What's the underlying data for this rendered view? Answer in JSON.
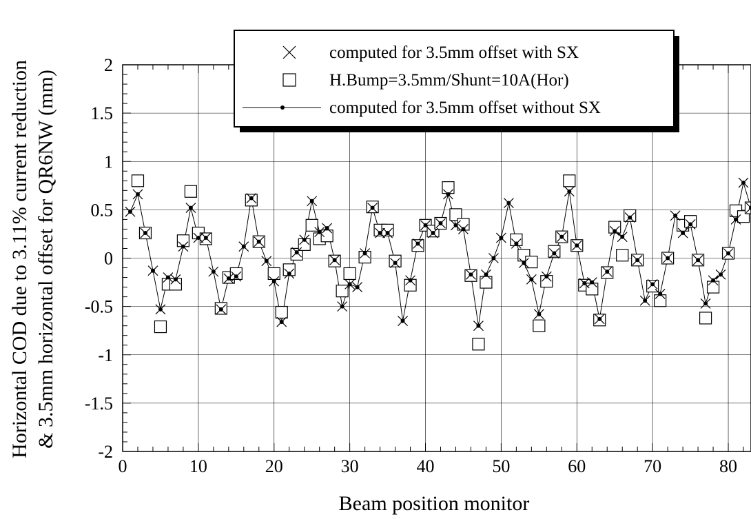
{
  "chart_data": {
    "type": "line",
    "xlabel": "Beam position monitor",
    "ylabel_line1": "Horizontal COD due to 3.11% current reduction",
    "ylabel_line2": "& 3.5mm horizontal offset for QR6NW (mm)",
    "xlim": [
      0,
      83
    ],
    "ylim": [
      -2,
      2
    ],
    "x_ticks": [
      0,
      10,
      20,
      30,
      40,
      50,
      60,
      70,
      80
    ],
    "y_ticks": [
      -2,
      -1.5,
      -1,
      -0.5,
      0,
      0.5,
      1,
      1.5,
      2
    ],
    "y_tick_labels": [
      "-2",
      "-1.5",
      "-1",
      "-0.5",
      "0",
      "0.5",
      "1",
      "1.5",
      "2"
    ],
    "grid": true,
    "legend_position": "top-right",
    "x": [
      1,
      2,
      3,
      4,
      5,
      6,
      7,
      8,
      9,
      10,
      11,
      12,
      13,
      14,
      15,
      16,
      17,
      18,
      19,
      20,
      21,
      22,
      23,
      24,
      25,
      26,
      27,
      28,
      29,
      30,
      31,
      32,
      33,
      34,
      35,
      36,
      37,
      38,
      39,
      40,
      41,
      42,
      43,
      44,
      45,
      46,
      47,
      48,
      49,
      50,
      51,
      52,
      53,
      54,
      55,
      56,
      57,
      58,
      59,
      60,
      61,
      62,
      63,
      64,
      65,
      66,
      67,
      68,
      69,
      70,
      71,
      72,
      73,
      74,
      75,
      76,
      77,
      78,
      79,
      80,
      81,
      82,
      83
    ],
    "series": [
      {
        "name": "computed for 3.5mm offset with SX",
        "marker": "x",
        "line": false,
        "y": [
          0.48,
          0.66,
          0.26,
          -0.13,
          -0.53,
          -0.2,
          -0.22,
          0.12,
          0.52,
          0.21,
          0.21,
          -0.14,
          -0.53,
          -0.21,
          -0.19,
          0.12,
          0.62,
          0.17,
          -0.03,
          -0.24,
          -0.66,
          -0.16,
          0.06,
          0.19,
          0.59,
          0.27,
          0.31,
          -0.02,
          -0.5,
          -0.27,
          -0.3,
          0.05,
          0.52,
          0.26,
          0.26,
          -0.05,
          -0.65,
          -0.23,
          0.15,
          0.34,
          0.26,
          0.36,
          0.66,
          0.34,
          0.3,
          -0.17,
          -0.7,
          -0.17,
          0.0,
          0.21,
          0.57,
          0.15,
          -0.05,
          -0.22,
          -0.58,
          -0.19,
          0.05,
          0.22,
          0.69,
          0.13,
          -0.26,
          -0.25,
          -0.63,
          -0.14,
          0.28,
          0.22,
          0.42,
          -0.02,
          -0.44,
          -0.27,
          -0.37,
          0.0,
          0.44,
          0.26,
          0.35,
          -0.02,
          -0.47,
          -0.23,
          -0.17,
          0.05,
          0.4,
          0.78,
          0.52
        ]
      },
      {
        "name": "H.Bump=3.5mm/Shunt=10A(Hor)",
        "marker": "square",
        "line": false,
        "y": [
          null,
          0.8,
          0.26,
          null,
          -0.71,
          -0.27,
          -0.27,
          0.18,
          0.69,
          0.26,
          0.2,
          null,
          -0.52,
          -0.2,
          -0.16,
          null,
          0.6,
          0.17,
          null,
          -0.16,
          -0.56,
          -0.12,
          0.04,
          0.14,
          0.34,
          0.2,
          0.23,
          -0.03,
          -0.34,
          -0.16,
          null,
          0.01,
          0.53,
          0.29,
          0.29,
          -0.03,
          null,
          -0.28,
          0.13,
          0.34,
          0.28,
          0.36,
          0.73,
          0.45,
          0.35,
          -0.18,
          -0.89,
          -0.25,
          null,
          null,
          null,
          0.19,
          0.03,
          -0.04,
          -0.7,
          -0.24,
          0.07,
          0.22,
          0.8,
          0.13,
          -0.28,
          -0.32,
          -0.64,
          -0.15,
          0.32,
          0.03,
          0.44,
          -0.02,
          null,
          -0.29,
          -0.44,
          0.0,
          null,
          0.34,
          0.38,
          -0.02,
          -0.62,
          -0.3,
          null,
          0.05,
          0.49,
          0.43,
          0.52
        ]
      },
      {
        "name": "computed for 3.5mm offset without SX",
        "marker": "dot",
        "line": true,
        "y": [
          0.48,
          0.66,
          0.26,
          -0.13,
          -0.53,
          -0.2,
          -0.22,
          0.12,
          0.52,
          0.21,
          0.21,
          -0.14,
          -0.53,
          -0.21,
          -0.19,
          0.12,
          0.62,
          0.17,
          -0.03,
          -0.24,
          -0.66,
          -0.16,
          0.06,
          0.19,
          0.59,
          0.27,
          0.31,
          -0.02,
          -0.5,
          -0.27,
          -0.3,
          0.05,
          0.52,
          0.26,
          0.26,
          -0.05,
          -0.65,
          -0.23,
          0.15,
          0.34,
          0.26,
          0.36,
          0.66,
          0.34,
          0.3,
          -0.17,
          -0.7,
          -0.17,
          0.0,
          0.21,
          0.57,
          0.15,
          -0.05,
          -0.22,
          -0.58,
          -0.19,
          0.05,
          0.22,
          0.69,
          0.13,
          -0.26,
          -0.25,
          -0.63,
          -0.14,
          0.28,
          0.22,
          0.42,
          -0.02,
          -0.44,
          -0.27,
          -0.37,
          0.0,
          0.44,
          0.26,
          0.35,
          -0.02,
          -0.47,
          -0.23,
          -0.17,
          0.05,
          0.4,
          0.78,
          0.52
        ]
      }
    ]
  }
}
